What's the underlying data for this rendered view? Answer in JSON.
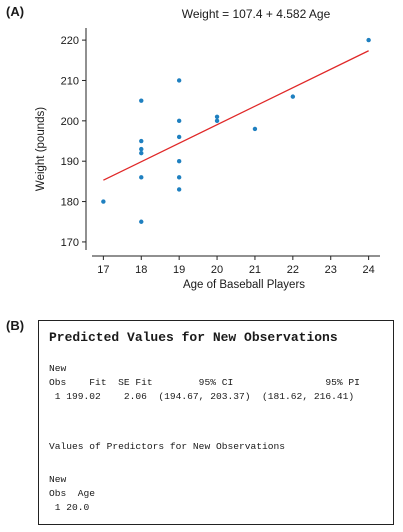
{
  "panel_a_label": "(A)",
  "panel_b_label": "(B)",
  "chart_data": {
    "type": "scatter",
    "title": "Weight = 107.4 + 4.582 Age",
    "xlabel": "Age of Baseball Players",
    "ylabel": "Weight (pounds)",
    "xlim": [
      16.7,
      24.3
    ],
    "ylim": [
      168,
      223
    ],
    "xticks": [
      17,
      18,
      19,
      20,
      21,
      22,
      23,
      24
    ],
    "yticks": [
      170,
      180,
      190,
      200,
      210,
      220
    ],
    "grid": false,
    "points_color": "#1f80c0",
    "line_color": "#e02828",
    "points": [
      {
        "x": 17,
        "y": 180
      },
      {
        "x": 18,
        "y": 205
      },
      {
        "x": 18,
        "y": 195
      },
      {
        "x": 18,
        "y": 193
      },
      {
        "x": 18,
        "y": 192
      },
      {
        "x": 18,
        "y": 186
      },
      {
        "x": 18,
        "y": 175
      },
      {
        "x": 19,
        "y": 210
      },
      {
        "x": 19,
        "y": 200
      },
      {
        "x": 19,
        "y": 196
      },
      {
        "x": 19,
        "y": 190
      },
      {
        "x": 19,
        "y": 186
      },
      {
        "x": 19,
        "y": 183
      },
      {
        "x": 20,
        "y": 201
      },
      {
        "x": 20,
        "y": 200
      },
      {
        "x": 21,
        "y": 198
      },
      {
        "x": 22,
        "y": 206
      },
      {
        "x": 24,
        "y": 220
      }
    ],
    "fit_line": {
      "intercept": 107.4,
      "slope": 4.582,
      "x_start": 17,
      "x_end": 24
    }
  },
  "output": {
    "title": "Predicted Values for New Observations",
    "header_new": "New",
    "header_cols": "Obs    Fit  SE Fit        95% CI                95% PI",
    "row_values": " 1 199.02    2.06  (194.67, 203.37)  (181.62, 216.41)",
    "predictors_title": "Values of Predictors for New Observations",
    "pred_new": "New",
    "pred_cols": "Obs  Age",
    "pred_row": " 1 20.0"
  }
}
